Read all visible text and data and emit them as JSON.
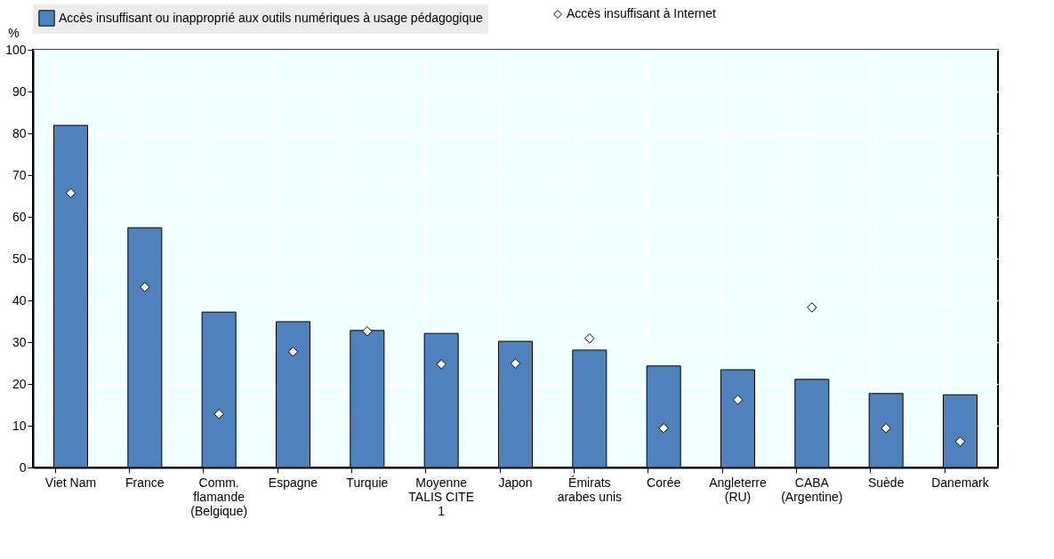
{
  "chart_data": {
    "type": "bar",
    "ylabel": "%",
    "categories": [
      "Viet Nam",
      "France",
      "Comm. flamande (Belgique)",
      "Espagne",
      "Turquie",
      "Moyenne TALIS CITE 1",
      "Japon",
      "Émirats arabes unis",
      "Corée",
      "Angleterre (RU)",
      "CABA (Argentine)",
      "Suède",
      "Danemark"
    ],
    "series": [
      {
        "name": "Accès insuffisant ou inapproprié aux outils numériques à usage pédagogique",
        "color": "#4f81bd",
        "values": [
          81.9,
          57.4,
          37.2,
          34.9,
          32.8,
          32.1,
          30.2,
          28.1,
          24.3,
          23.4,
          21.1,
          17.7,
          17.4
        ]
      },
      {
        "name": "Accès insuffisant à Internet",
        "color": "#ffffff",
        "type": "scatter",
        "marker": "diamond",
        "values": [
          65.7,
          43.2,
          12.8,
          27.7,
          32.6,
          24.7,
          24.9,
          30.9,
          9.4,
          16.2,
          38.3,
          9.4,
          6.2
        ]
      }
    ],
    "ylim": [
      0,
      100
    ],
    "yticks": [
      0,
      10,
      20,
      30,
      40,
      50,
      60,
      70,
      80,
      90,
      100
    ],
    "grid": true,
    "legend": "top"
  }
}
